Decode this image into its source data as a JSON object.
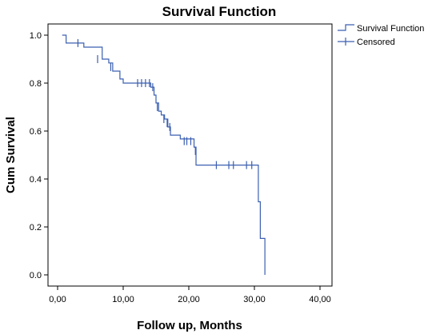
{
  "chart_data": {
    "type": "line",
    "title": "Survival Function",
    "xlabel": "Follow up, Months",
    "ylabel": "Cum Survival",
    "xlim": [
      0,
      40
    ],
    "ylim": [
      0,
      1
    ],
    "x_ticks": [
      "0,00",
      "10,00",
      "20,00",
      "30,00",
      "40,00"
    ],
    "x_tick_values": [
      0,
      10,
      20,
      30,
      40
    ],
    "y_ticks": [
      "0.0",
      "0.2",
      "0.4",
      "0.6",
      "0.8",
      "1.0"
    ],
    "y_tick_values": [
      0,
      0.2,
      0.4,
      0.6,
      0.8,
      1.0
    ],
    "grid": false,
    "legend_position": "top-right",
    "line_color": "#3b5fb0",
    "series": [
      {
        "name": "Survival Function",
        "style": "step",
        "x": [
          0.7,
          1.3,
          4.0,
          6.8,
          7.8,
          8.4,
          9.5,
          10.0,
          14.2,
          14.7,
          15.0,
          15.4,
          15.8,
          16.3,
          16.8,
          17.2,
          18.7,
          20.8,
          21.1,
          30.6,
          30.9,
          31.6
        ],
        "y": [
          1.0,
          0.967,
          0.95,
          0.9,
          0.884,
          0.85,
          0.817,
          0.8,
          0.783,
          0.75,
          0.717,
          0.683,
          0.667,
          0.65,
          0.617,
          0.583,
          0.567,
          0.533,
          0.458,
          0.305,
          0.152,
          0.0
        ]
      },
      {
        "name": "Censored",
        "style": "marker",
        "x": [
          3.1,
          6.1,
          8.1,
          12.2,
          12.8,
          13.4,
          14.0,
          14.5,
          15.2,
          16.2,
          16.7,
          17.1,
          19.3,
          19.7,
          20.3,
          21.0,
          24.2,
          26.1,
          26.8,
          28.8,
          29.6
        ],
        "y": [
          0.967,
          0.9,
          0.867,
          0.8,
          0.8,
          0.8,
          0.8,
          0.783,
          0.7,
          0.65,
          0.633,
          0.617,
          0.558,
          0.558,
          0.558,
          0.517,
          0.458,
          0.458,
          0.458,
          0.458,
          0.458
        ]
      }
    ]
  }
}
